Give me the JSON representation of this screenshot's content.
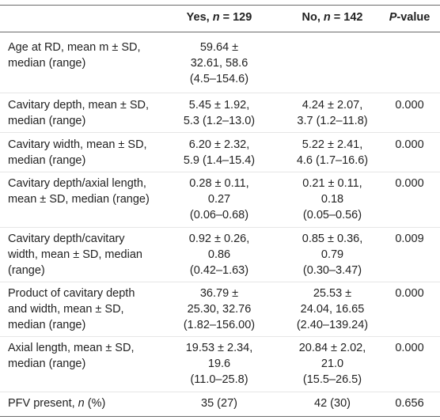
{
  "table": {
    "headers": {
      "col0": "",
      "col1_prefix": "Yes, ",
      "col1_n": "n",
      "col1_eq": " = 129",
      "col2_prefix": "No, ",
      "col2_n": "n",
      "col2_eq": " = 142",
      "col3_p": "P",
      "col3_suffix": "-value"
    },
    "rows": [
      {
        "label": "Age at RD, mean m ± SD,\nmedian (range)",
        "yes": "59.64 ±\n32.61, 58.6\n(4.5–154.6)",
        "no": "",
        "p": ""
      },
      {
        "label": "Cavitary depth, mean ± SD,\nmedian (range)",
        "yes": "5.45 ± 1.92,\n5.3 (1.2–13.0)",
        "no": "4.24 ± 2.07,\n3.7 (1.2–11.8)",
        "p": "0.000"
      },
      {
        "label": "Cavitary width, mean ± SD,\nmedian (range)",
        "yes": "6.20 ± 2.32,\n5.9 (1.4–15.4)",
        "no": "5.22 ± 2.41,\n4.6 (1.7–16.6)",
        "p": "0.000"
      },
      {
        "label": "Cavitary depth/axial length,\nmean ± SD, median (range)",
        "yes": "0.28 ± 0.11,\n0.27\n(0.06–0.68)",
        "no": "0.21 ± 0.11,\n0.18\n(0.05–0.56)",
        "p": "0.000"
      },
      {
        "label": "Cavitary depth/cavitary\nwidth, mean ± SD, median\n(range)",
        "yes": "0.92 ± 0.26,\n0.86\n(0.42–1.63)",
        "no": "0.85 ± 0.36,\n0.79\n(0.30–3.47)",
        "p": "0.009"
      },
      {
        "label": "Product of cavitary depth\nand width, mean ± SD,\nmedian (range)",
        "yes": "36.79 ±\n25.30, 32.76\n(1.82–156.00)",
        "no": "25.53 ±\n24.04, 16.65\n(2.40–139.24)",
        "p": "0.000"
      },
      {
        "label": "Axial length, mean ± SD,\nmedian (range)",
        "yes": "19.53 ± 2.34,\n19.6\n(11.0–25.8)",
        "no": "20.84 ± 2.02,\n21.0\n(15.5–26.5)",
        "p": "0.000"
      },
      {
        "label_prefix": "PFV present, ",
        "label_n": "n",
        "label_suffix": " (%)",
        "yes": "35 (27)",
        "no": "42 (30)",
        "p": "0.656"
      }
    ]
  }
}
